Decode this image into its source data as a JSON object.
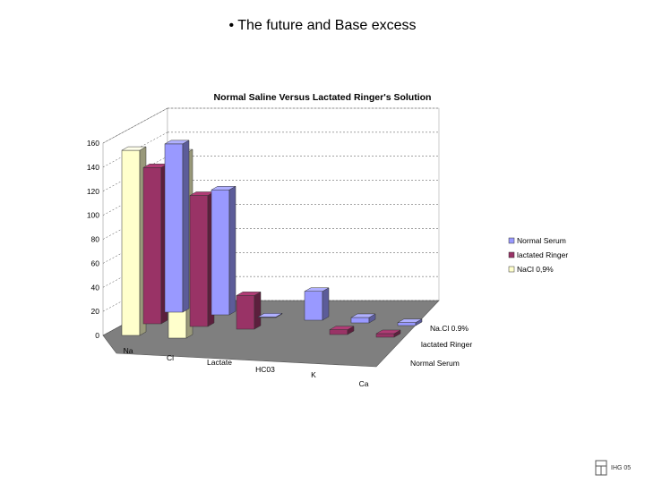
{
  "slide": {
    "title": "• The future and Base excess",
    "footer": "IHG 05"
  },
  "chart_data": {
    "type": "bar",
    "title": "Normal Saline Versus Lactated Ringer's Solution",
    "categories": [
      "Na",
      "Cl",
      "Lactate",
      "HC03",
      "K",
      "Ca"
    ],
    "yticks": [
      "0",
      "20",
      "40",
      "60",
      "80",
      "100",
      "120",
      "140",
      "160"
    ],
    "ylim": [
      0,
      160
    ],
    "grid": true,
    "legend_position": "right",
    "series": [
      {
        "name": "Normal Serum",
        "color": "#9999ff",
        "values": [
          140,
          104,
          0.5,
          24,
          4.5,
          2.5
        ]
      },
      {
        "name": "lactated Ringer",
        "color": "#993366",
        "values": [
          130,
          109,
          28,
          0,
          4,
          3
        ]
      },
      {
        "name": "NaCl 0,9%",
        "color": "#ffffcc",
        "values": [
          154,
          154,
          0,
          0,
          0,
          0
        ]
      }
    ],
    "depth_labels": [
      "Na.Cl 0.9%",
      "lactated Ringer",
      "Normal Serum"
    ]
  }
}
